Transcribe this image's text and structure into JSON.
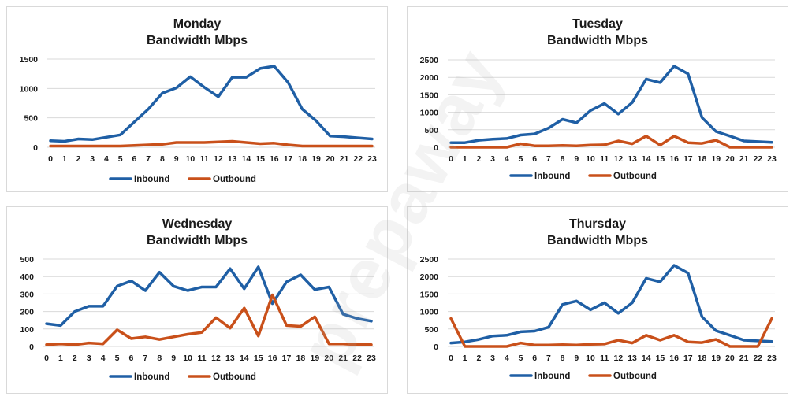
{
  "watermark": "prepaway",
  "colors": {
    "inbound": "#1f5fa5",
    "outbound": "#c9501a",
    "grid": "#d9d9d9"
  },
  "chart_data": [
    {
      "type": "line",
      "title": "Monday",
      "subtitle": "Bandwidth Mbps",
      "x": [
        0,
        1,
        2,
        3,
        4,
        5,
        6,
        7,
        8,
        9,
        10,
        11,
        12,
        13,
        14,
        15,
        16,
        17,
        18,
        19,
        20,
        21,
        22,
        23
      ],
      "ylim": [
        0,
        1500
      ],
      "yticks": [
        0,
        500,
        1000,
        1500
      ],
      "legend": "bottom",
      "grid": true,
      "series": [
        {
          "name": "Inbound",
          "values": [
            110,
            100,
            140,
            130,
            170,
            210,
            430,
            650,
            920,
            1010,
            1200,
            1020,
            860,
            1190,
            1190,
            1340,
            1380,
            1100,
            650,
            450,
            190,
            180,
            160,
            140
          ]
        },
        {
          "name": "Outbound",
          "values": [
            20,
            20,
            20,
            20,
            20,
            20,
            30,
            40,
            50,
            80,
            80,
            80,
            90,
            100,
            80,
            60,
            70,
            40,
            20,
            20,
            20,
            20,
            20,
            20
          ]
        }
      ]
    },
    {
      "type": "line",
      "title": "Tuesday",
      "subtitle": "Bandwidth Mbps",
      "x": [
        0,
        1,
        2,
        3,
        4,
        5,
        6,
        7,
        8,
        9,
        10,
        11,
        12,
        13,
        14,
        15,
        16,
        17,
        18,
        19,
        20,
        21,
        22,
        23
      ],
      "ylim": [
        0,
        2500
      ],
      "yticks": [
        0,
        500,
        1000,
        1500,
        2000,
        2500
      ],
      "legend": "bottom",
      "grid": true,
      "series": [
        {
          "name": "Inbound",
          "values": [
            130,
            130,
            200,
            230,
            250,
            350,
            380,
            550,
            800,
            700,
            1050,
            1250,
            950,
            1280,
            1950,
            1850,
            2320,
            2100,
            850,
            450,
            320,
            180,
            160,
            140
          ]
        },
        {
          "name": "Outbound",
          "values": [
            0,
            0,
            0,
            0,
            0,
            100,
            40,
            40,
            50,
            40,
            60,
            70,
            180,
            100,
            320,
            60,
            320,
            130,
            110,
            200,
            0,
            0,
            0,
            0
          ]
        }
      ]
    },
    {
      "type": "line",
      "title": "Wednesday",
      "subtitle": "Bandwidth Mbps",
      "x": [
        0,
        1,
        2,
        3,
        4,
        5,
        6,
        7,
        8,
        9,
        10,
        11,
        12,
        13,
        14,
        15,
        16,
        17,
        18,
        19,
        20,
        21,
        22,
        23
      ],
      "ylim": [
        0,
        500
      ],
      "yticks": [
        0,
        100,
        200,
        300,
        400,
        500
      ],
      "legend": "bottom",
      "grid": true,
      "series": [
        {
          "name": "Inbound",
          "values": [
            130,
            120,
            200,
            230,
            230,
            345,
            375,
            320,
            425,
            345,
            320,
            340,
            340,
            445,
            330,
            455,
            245,
            370,
            410,
            325,
            340,
            185,
            160,
            145
          ]
        },
        {
          "name": "Outbound",
          "values": [
            10,
            15,
            10,
            20,
            15,
            95,
            45,
            55,
            40,
            55,
            70,
            80,
            165,
            105,
            220,
            60,
            295,
            120,
            115,
            170,
            15,
            15,
            10,
            10
          ]
        }
      ]
    },
    {
      "type": "line",
      "title": "Thursday",
      "subtitle": "Bandwidth Mbps",
      "x": [
        0,
        1,
        2,
        3,
        4,
        5,
        6,
        7,
        8,
        9,
        10,
        11,
        12,
        13,
        14,
        15,
        16,
        17,
        18,
        19,
        20,
        21,
        22,
        23
      ],
      "ylim": [
        0,
        2500
      ],
      "yticks": [
        0,
        500,
        1000,
        1500,
        2000,
        2500
      ],
      "legend": "bottom",
      "grid": true,
      "series": [
        {
          "name": "Inbound",
          "values": [
            100,
            130,
            200,
            300,
            320,
            420,
            440,
            550,
            1200,
            1300,
            1050,
            1250,
            950,
            1250,
            1950,
            1850,
            2320,
            2100,
            850,
            450,
            320,
            180,
            160,
            140
          ]
        },
        {
          "name": "Outbound",
          "values": [
            800,
            0,
            0,
            0,
            0,
            100,
            40,
            40,
            50,
            40,
            60,
            70,
            180,
            100,
            320,
            180,
            320,
            130,
            110,
            200,
            0,
            0,
            0,
            800
          ]
        }
      ]
    }
  ]
}
